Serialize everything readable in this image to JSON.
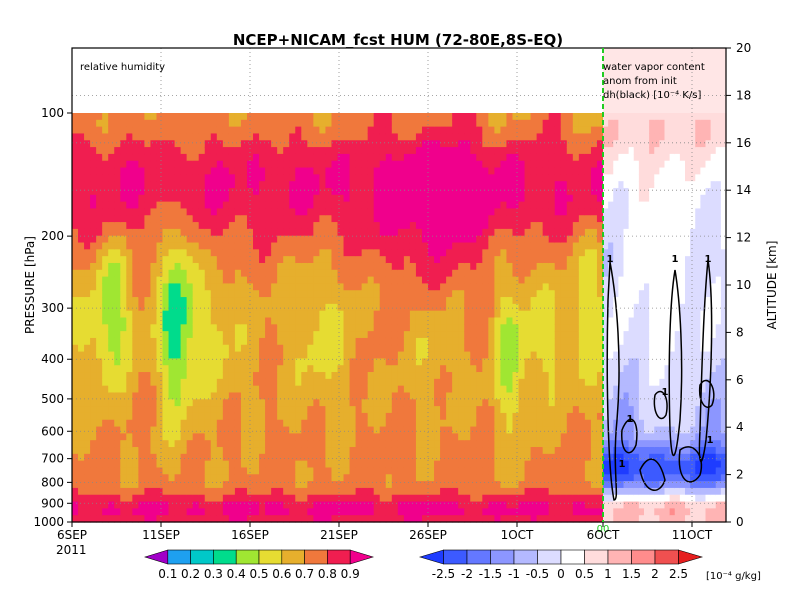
{
  "chart_data": {
    "type": "heatmap",
    "title": "NCEP+NICAM_fcst HUM (72-80E,8S-EQ)",
    "ylabel": "PRESSURE [hPa]",
    "y2label": "ALTITUDE [km]",
    "year_label": "2011",
    "x_ticks": [
      "6SEP",
      "11SEP",
      "16SEP",
      "21SEP",
      "26SEP",
      "1OCT",
      "6OCT",
      "11OCT"
    ],
    "x_range_days_label": [
      "6SEP",
      "16OCT"
    ],
    "y_ticks": [
      "100",
      "200",
      "300",
      "400",
      "500",
      "600",
      "700",
      "800",
      "900",
      "1000"
    ],
    "y_range": [
      1000,
      100
    ],
    "y2_ticks": [
      "0",
      "2",
      "4",
      "6",
      "8",
      "10",
      "12",
      "14",
      "16",
      "18",
      "20"
    ],
    "y2_range": [
      0,
      20
    ],
    "split_date": "6OCT",
    "split_marker_label": "00",
    "left_panel": {
      "label": "relative humidity",
      "colorbar_levels": [
        "0.1",
        "0.2",
        "0.3",
        "0.4",
        "0.5",
        "0.6",
        "0.7",
        "0.8",
        "0.9"
      ],
      "colorbar_colors": [
        "#a000c8",
        "#1ea0f0",
        "#00c8c8",
        "#00dc8c",
        "#a0e632",
        "#e6dc32",
        "#e6af2d",
        "#f0783c",
        "#f01e50",
        "#f0008c"
      ]
    },
    "right_panel": {
      "label_lines": [
        "water vapor content",
        "anom from init",
        "dh(black) [10⁻⁴ K/s]"
      ],
      "contour_label": "1",
      "colorbar_levels": [
        "-2.5",
        "-2",
        "-1.5",
        "-1",
        "-0.5",
        "0",
        "0.5",
        "1",
        "1.5",
        "2",
        "2.5"
      ],
      "colorbar_units": "[10⁻⁴ g/kg]",
      "colorbar_colors": [
        "#1e3cff",
        "#3c5aff",
        "#6478ff",
        "#8c96ff",
        "#b4b9ff",
        "#dcdcff",
        "#ffffff",
        "#ffdcdc",
        "#ffb4b4",
        "#ff8c8c",
        "#f05050",
        "#e61e1e"
      ]
    },
    "grid": true
  }
}
